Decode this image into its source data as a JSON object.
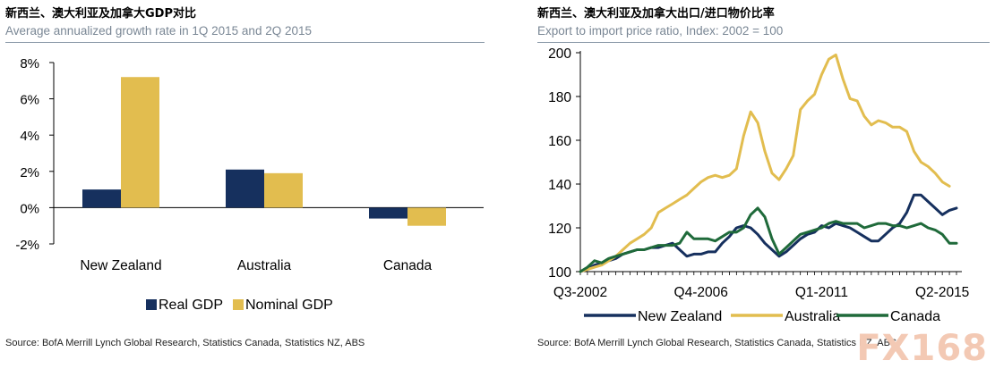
{
  "left_panel": {
    "title": "新西兰、澳大利亚及加拿大GDP对比",
    "subtitle": "Average annualized growth rate in 1Q 2015 and 2Q 2015",
    "source": "Source: BofA Merrill Lynch Global Research, Statistics Canada, Statistics NZ, ABS"
  },
  "right_panel": {
    "title": "新西兰、澳大利亚及加拿大出口/进口物价比率",
    "subtitle": "Export to import price ratio, Index: 2002 = 100",
    "source": "Source: BofA Merrill Lynch Global Research, Statistics Canada, Statistics NZ, ABS"
  },
  "watermark": "FX168",
  "colors": {
    "navy": "#16305e",
    "gold": "#e2bd4f",
    "green": "#1f6a3a"
  },
  "chart_data": [
    {
      "type": "bar",
      "title": "新西兰、澳大利亚及加拿大GDP对比",
      "subtitle": "Average annualized growth rate in 1Q 2015 and 2Q 2015",
      "categories": [
        "New Zealand",
        "Australia",
        "Canada"
      ],
      "series": [
        {
          "name": "Real GDP",
          "color": "#16305e",
          "values": [
            1.0,
            2.1,
            -0.6
          ]
        },
        {
          "name": "Nominal GDP",
          "color": "#e2bd4f",
          "values": [
            7.2,
            1.9,
            -1.0
          ]
        }
      ],
      "y_ticks": [
        "8%",
        "6%",
        "4%",
        "2%",
        "0%",
        "-2%"
      ],
      "ylim": [
        -2,
        8
      ],
      "legend": "bottom",
      "grid": false
    },
    {
      "type": "line",
      "title": "新西兰、澳大利亚及加拿大出口/进口物价比率",
      "subtitle": "Export to import price ratio, Index: 2002 = 100",
      "x_ticks": [
        "Q3-2002",
        "Q4-2006",
        "Q1-2011",
        "Q2-2015"
      ],
      "y_ticks": [
        100,
        120,
        140,
        160,
        180,
        200
      ],
      "ylim": [
        100,
        200
      ],
      "legend": "bottom",
      "grid": false,
      "x_start": "Q3-2002",
      "series": [
        {
          "name": "New Zealand",
          "color": "#16305e",
          "values": [
            100,
            101,
            103,
            104,
            105,
            106,
            108,
            109,
            110,
            110,
            111,
            111,
            112,
            113,
            110,
            107,
            108,
            108,
            109,
            109,
            113,
            116,
            120,
            121,
            120,
            117,
            113,
            110,
            107,
            109,
            112,
            115,
            117,
            118,
            121,
            120,
            122,
            121,
            120,
            118,
            116,
            114,
            114,
            117,
            120,
            122,
            127,
            135,
            135,
            132,
            129,
            126,
            128,
            129
          ]
        },
        {
          "name": "Australia",
          "color": "#e2bd4f",
          "values": [
            100,
            101,
            102,
            103,
            105,
            107,
            110,
            113,
            115,
            117,
            120,
            127,
            129,
            131,
            133,
            135,
            138,
            141,
            143,
            144,
            143,
            144,
            147,
            162,
            173,
            168,
            155,
            145,
            142,
            147,
            153,
            174,
            178,
            181,
            190,
            197,
            199,
            188,
            179,
            178,
            171,
            167,
            169,
            168,
            166,
            166,
            164,
            155,
            150,
            148,
            145,
            141,
            139
          ]
        },
        {
          "name": "Canada",
          "color": "#1f6a3a",
          "values": [
            100,
            102,
            105,
            104,
            106,
            107,
            108,
            109,
            110,
            110,
            111,
            112,
            112,
            112,
            113,
            118,
            115,
            115,
            115,
            114,
            116,
            118,
            118,
            120,
            126,
            129,
            125,
            115,
            108,
            111,
            114,
            117,
            118,
            119,
            120,
            122,
            123,
            122,
            122,
            122,
            120,
            121,
            122,
            122,
            121,
            121,
            120,
            121,
            122,
            120,
            119,
            117,
            113,
            113
          ]
        }
      ]
    }
  ]
}
